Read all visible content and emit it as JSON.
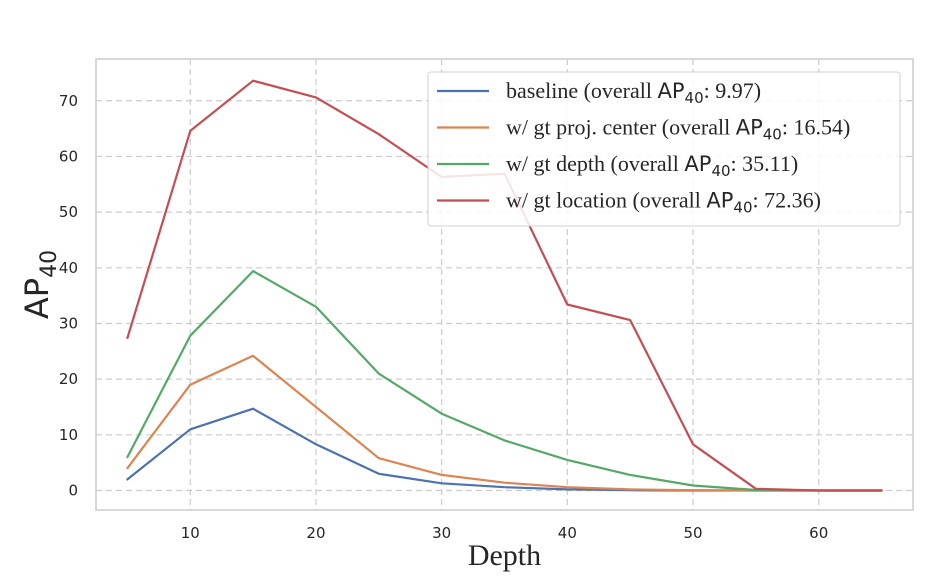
{
  "chart_data": {
    "type": "line",
    "xlabel": "Depth",
    "ylabel": {
      "main": "AP",
      "sub": "40"
    },
    "xlim": [
      2.5,
      67.5
    ],
    "ylim": [
      -3.5,
      77.5
    ],
    "xticks": [
      10,
      20,
      30,
      40,
      50,
      60
    ],
    "yticks": [
      0,
      10,
      20,
      30,
      40,
      50,
      60,
      70
    ],
    "grid": true,
    "grid_style": "dashed",
    "legend_position": "top-right",
    "x": [
      5,
      10,
      15,
      20,
      25,
      30,
      35,
      40,
      45,
      50,
      55,
      60,
      65
    ],
    "series": [
      {
        "name": "baseline",
        "legend_label": {
          "prefix": "baseline (overall ",
          "metric": "AP",
          "sub": "40",
          "suffix": ": 9.97)"
        },
        "color": "#4c72b0",
        "values": [
          2.0,
          11.0,
          14.7,
          8.3,
          3.0,
          1.3,
          0.6,
          0.2,
          0.05,
          0.0,
          0.0,
          0.0,
          0.0
        ]
      },
      {
        "name": "w/ gt proj. center",
        "legend_label": {
          "prefix": "w/ gt proj. center (overall ",
          "metric": "AP",
          "sub": "40",
          "suffix": ": 16.54)"
        },
        "color": "#dd8452",
        "values": [
          4.0,
          19.0,
          24.2,
          15.0,
          5.8,
          2.8,
          1.4,
          0.6,
          0.2,
          0.05,
          0.0,
          0.0,
          0.0
        ]
      },
      {
        "name": "w/ gt depth",
        "legend_label": {
          "prefix": "w/ gt depth (overall ",
          "metric": "AP",
          "sub": "40",
          "suffix": ": 35.11)"
        },
        "color": "#55a868",
        "values": [
          6.0,
          27.8,
          39.4,
          33.0,
          21.0,
          13.8,
          9.0,
          5.5,
          2.8,
          0.9,
          0.1,
          0.0,
          0.0
        ]
      },
      {
        "name": "w/ gt location",
        "legend_label": {
          "prefix": "w/ gt location (overall ",
          "metric": "AP",
          "sub": "40",
          "suffix": ": 72.36)"
        },
        "color": "#c44e52",
        "values": [
          27.4,
          64.6,
          73.6,
          70.6,
          64.0,
          56.3,
          56.9,
          33.4,
          30.6,
          8.3,
          0.3,
          0.0,
          0.0
        ]
      }
    ]
  }
}
